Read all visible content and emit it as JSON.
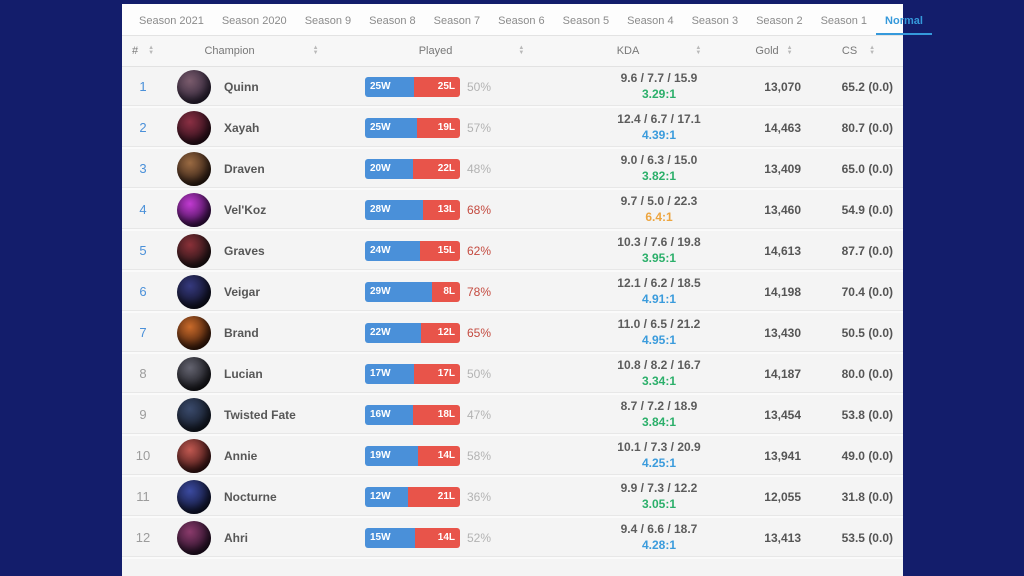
{
  "theme": {
    "colors": {
      "navy": "#131d6b",
      "tab_active": "#3599db",
      "bar_win": "#4a90d9",
      "bar_loss": "#e8544a",
      "rank_blue": "#4a90d9",
      "pct_hot": "#c44b40",
      "ratio_green": "#2baf6a",
      "ratio_blue": "#3a9bdc",
      "ratio_orange": "#eda53f"
    }
  },
  "tabs": {
    "items": [
      {
        "label": "Season 2021",
        "active": false
      },
      {
        "label": "Season 2020",
        "active": false
      },
      {
        "label": "Season 9",
        "active": false
      },
      {
        "label": "Season 8",
        "active": false
      },
      {
        "label": "Season 7",
        "active": false
      },
      {
        "label": "Season 6",
        "active": false
      },
      {
        "label": "Season 5",
        "active": false
      },
      {
        "label": "Season 4",
        "active": false
      },
      {
        "label": "Season 3",
        "active": false
      },
      {
        "label": "Season 2",
        "active": false
      },
      {
        "label": "Season 1",
        "active": false
      },
      {
        "label": "Normal",
        "active": true
      }
    ]
  },
  "table": {
    "headers": [
      {
        "label": "#",
        "sortable": true
      },
      {
        "label": "Champion",
        "sortable": true
      },
      {
        "label": "Played",
        "sortable": true
      },
      {
        "label": "KDA",
        "sortable": true
      },
      {
        "label": "Gold",
        "sortable": true
      },
      {
        "label": "CS",
        "sortable": true
      }
    ],
    "rows": [
      {
        "rank": "1",
        "rank_color": "blue",
        "champion": "Quinn",
        "wins": 25,
        "losses": 25,
        "win_label": "25W",
        "loss_label": "25L",
        "win_rate": "50%",
        "win_rate_hot": false,
        "kda": "9.6 / 7.7 / 15.9",
        "ratio": "3.29:1",
        "ratio_color": "green",
        "gold": "13,070",
        "cs": "65.2 (0.0)",
        "avatar": [
          "#7a5b6c",
          "#2e2438"
        ]
      },
      {
        "rank": "2",
        "rank_color": "blue",
        "champion": "Xayah",
        "wins": 25,
        "losses": 19,
        "win_label": "25W",
        "loss_label": "19L",
        "win_rate": "57%",
        "win_rate_hot": false,
        "kda": "12.4 / 6.7 / 17.1",
        "ratio": "4.39:1",
        "ratio_color": "blue",
        "gold": "14,463",
        "cs": "80.7 (0.0)",
        "avatar": [
          "#8a2f43",
          "#2a0f1a"
        ]
      },
      {
        "rank": "3",
        "rank_color": "blue",
        "champion": "Draven",
        "wins": 20,
        "losses": 22,
        "win_label": "20W",
        "loss_label": "22L",
        "win_rate": "48%",
        "win_rate_hot": false,
        "kda": "9.0 / 6.3 / 15.0",
        "ratio": "3.82:1",
        "ratio_color": "green",
        "gold": "13,409",
        "cs": "65.0 (0.0)",
        "avatar": [
          "#9a6a42",
          "#2f1d14"
        ]
      },
      {
        "rank": "4",
        "rank_color": "blue",
        "champion": "Vel'Koz",
        "wins": 28,
        "losses": 13,
        "win_label": "28W",
        "loss_label": "13L",
        "win_rate": "68%",
        "win_rate_hot": true,
        "kda": "9.7 / 5.0 / 22.3",
        "ratio": "6.4:1",
        "ratio_color": "orange",
        "gold": "13,460",
        "cs": "54.9 (0.0)",
        "avatar": [
          "#c13ad1",
          "#3a0f4a"
        ]
      },
      {
        "rank": "5",
        "rank_color": "blue",
        "champion": "Graves",
        "wins": 24,
        "losses": 15,
        "win_label": "24W",
        "loss_label": "15L",
        "win_rate": "62%",
        "win_rate_hot": true,
        "kda": "10.3 / 7.6 / 19.8",
        "ratio": "3.95:1",
        "ratio_color": "green",
        "gold": "14,613",
        "cs": "87.7 (0.0)",
        "avatar": [
          "#8a3038",
          "#1f1416"
        ]
      },
      {
        "rank": "6",
        "rank_color": "blue",
        "champion": "Veigar",
        "wins": 29,
        "losses": 8,
        "win_label": "29W",
        "loss_label": "8L",
        "win_rate": "78%",
        "win_rate_hot": true,
        "kda": "12.1 / 6.2 / 18.5",
        "ratio": "4.91:1",
        "ratio_color": "blue",
        "gold": "14,198",
        "cs": "70.4 (0.0)",
        "avatar": [
          "#35397e",
          "#0f1020"
        ]
      },
      {
        "rank": "7",
        "rank_color": "blue",
        "champion": "Brand",
        "wins": 22,
        "losses": 12,
        "win_label": "22W",
        "loss_label": "12L",
        "win_rate": "65%",
        "win_rate_hot": true,
        "kda": "11.0 / 6.5 / 21.2",
        "ratio": "4.95:1",
        "ratio_color": "blue",
        "gold": "13,430",
        "cs": "50.5 (0.0)",
        "avatar": [
          "#c96a2a",
          "#3a1a0a"
        ]
      },
      {
        "rank": "8",
        "rank_color": "gray",
        "champion": "Lucian",
        "wins": 17,
        "losses": 17,
        "win_label": "17W",
        "loss_label": "17L",
        "win_rate": "50%",
        "win_rate_hot": false,
        "kda": "10.8 / 8.2 / 16.7",
        "ratio": "3.34:1",
        "ratio_color": "green",
        "gold": "14,187",
        "cs": "80.0 (0.0)",
        "avatar": [
          "#63636f",
          "#17171c"
        ]
      },
      {
        "rank": "9",
        "rank_color": "gray",
        "champion": "Twisted Fate",
        "wins": 16,
        "losses": 18,
        "win_label": "16W",
        "loss_label": "18L",
        "win_rate": "47%",
        "win_rate_hot": false,
        "kda": "8.7 / 7.2 / 18.9",
        "ratio": "3.84:1",
        "ratio_color": "green",
        "gold": "13,454",
        "cs": "53.8 (0.0)",
        "avatar": [
          "#3a4a6b",
          "#141a26"
        ]
      },
      {
        "rank": "10",
        "rank_color": "gray",
        "champion": "Annie",
        "wins": 19,
        "losses": 14,
        "win_label": "19W",
        "loss_label": "14L",
        "win_rate": "58%",
        "win_rate_hot": false,
        "kda": "10.1 / 7.3 / 20.9",
        "ratio": "4.25:1",
        "ratio_color": "blue",
        "gold": "13,941",
        "cs": "49.0 (0.0)",
        "avatar": [
          "#c05850",
          "#3a1414"
        ]
      },
      {
        "rank": "11",
        "rank_color": "gray",
        "champion": "Nocturne",
        "wins": 12,
        "losses": 21,
        "win_label": "12W",
        "loss_label": "21L",
        "win_rate": "36%",
        "win_rate_hot": false,
        "kda": "9.9 / 7.3 / 12.2",
        "ratio": "3.05:1",
        "ratio_color": "green",
        "gold": "12,055",
        "cs": "31.8 (0.0)",
        "avatar": [
          "#3b4aa0",
          "#10142e"
        ]
      },
      {
        "rank": "12",
        "rank_color": "gray",
        "champion": "Ahri",
        "wins": 15,
        "losses": 14,
        "win_label": "15W",
        "loss_label": "14L",
        "win_rate": "52%",
        "win_rate_hot": false,
        "kda": "9.4 / 6.6 / 18.7",
        "ratio": "4.28:1",
        "ratio_color": "blue",
        "gold": "13,413",
        "cs": "53.5 (0.0)",
        "avatar": [
          "#8a3a6b",
          "#241026"
        ]
      }
    ]
  }
}
